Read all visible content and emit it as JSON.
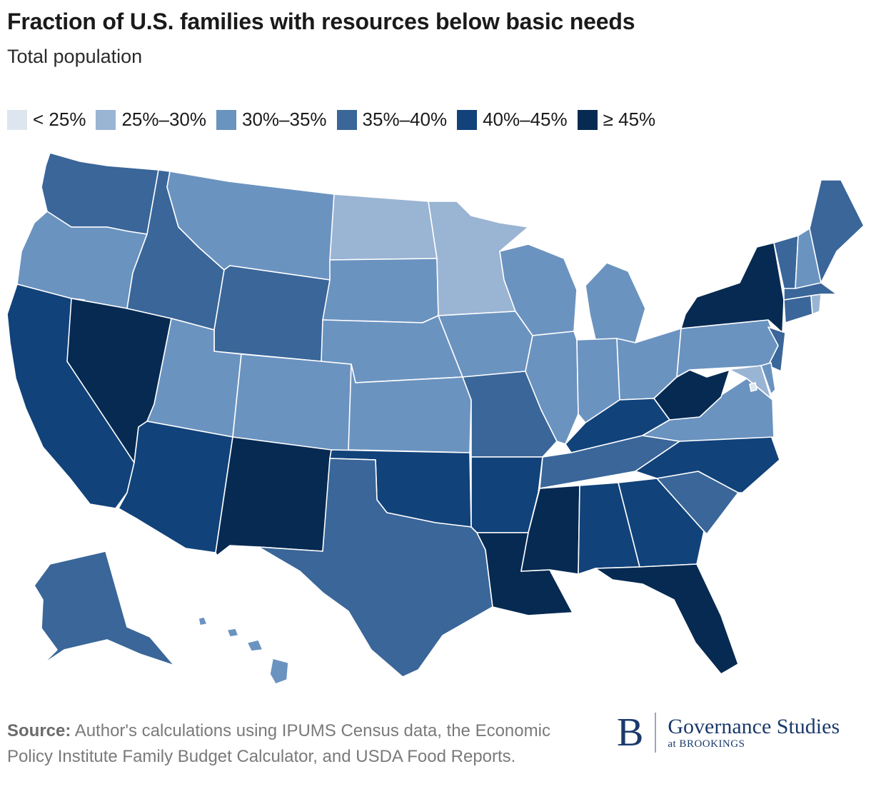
{
  "header": {
    "title": "Fraction of U.S. families with resources below basic needs",
    "subtitle": "Total population"
  },
  "legend": {
    "items": [
      {
        "label": "< 25%",
        "color": "#dde5ef"
      },
      {
        "label": "25%–30%",
        "color": "#9ab4d3"
      },
      {
        "label": "30%–35%",
        "color": "#6b93c0"
      },
      {
        "label": "35%–40%",
        "color": "#3a6699"
      },
      {
        "label": "40%–45%",
        "color": "#11427a"
      },
      {
        "label": "≥ 45%",
        "color": "#062a52"
      }
    ]
  },
  "bins": {
    "lt25": "#dde5ef",
    "b25_30": "#9ab4d3",
    "b30_35": "#6b93c0",
    "b35_40": "#3a6699",
    "b40_45": "#11427a",
    "ge45": "#062a52"
  },
  "states": {
    "WA": "35%–40%",
    "OR": "30%–35%",
    "CA": "40%–45%",
    "NV": "≥ 45%",
    "ID": "35%–40%",
    "MT": "30%–35%",
    "WY": "35%–40%",
    "UT": "30%–35%",
    "CO": "30%–35%",
    "AZ": "40%–45%",
    "NM": "≥ 45%",
    "ND": "25%–30%",
    "SD": "30%–35%",
    "NE": "30%–35%",
    "KS": "30%–35%",
    "OK": "40%–45%",
    "TX": "35%–40%",
    "MN": "25%–30%",
    "IA": "30%–35%",
    "MO": "35%–40%",
    "AR": "40%–45%",
    "LA": "≥ 45%",
    "WI": "30%–35%",
    "IL": "30%–35%",
    "MI": "30%–35%",
    "IN": "30%–35%",
    "OH": "30%–35%",
    "KY": "40%–45%",
    "TN": "35%–40%",
    "MS": "≥ 45%",
    "AL": "40%–45%",
    "GA": "40%–45%",
    "FL": "≥ 45%",
    "SC": "35%–40%",
    "NC": "40%–45%",
    "VA": "30%–35%",
    "WV": "≥ 45%",
    "PA": "30%–35%",
    "NY": "≥ 45%",
    "NJ": "35%–40%",
    "MD": "25%–30%",
    "DE": "30%–35%",
    "CT": "35%–40%",
    "RI": "25%–30%",
    "MA": "35%–40%",
    "VT": "35%–40%",
    "NH": "30%–35%",
    "ME": "35%–40%",
    "AK": "35%–40%",
    "HI": "30%–35%",
    "DC": "< 25%"
  },
  "footer": {
    "source_label": "Source:",
    "source_text": " Author's calculations using IPUMS Census data, the Economic Policy Institute Family Budget Calculator, and USDA Food Reports."
  },
  "brand": {
    "mark": "B",
    "name": "Governance Studies",
    "sub": "at BROOKINGS"
  }
}
